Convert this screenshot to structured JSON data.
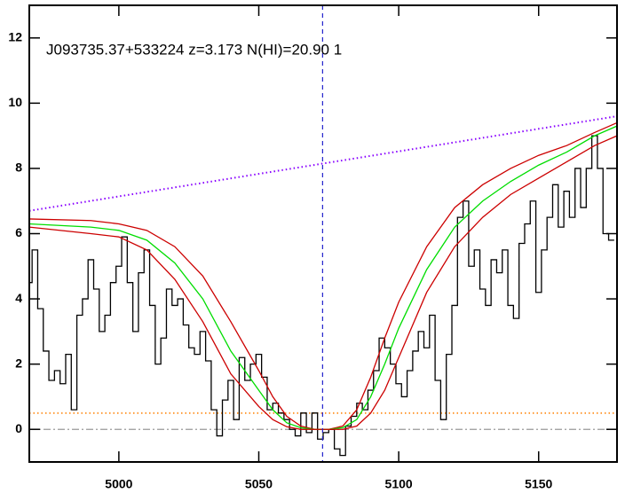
{
  "chart_data": {
    "type": "line",
    "title": "J093735.37+533224 z=3.173 N(HI)=20.90 1",
    "xlim": [
      4968,
      5178
    ],
    "ylim": [
      -1,
      13
    ],
    "xticks": [
      5000,
      5050,
      5100,
      5150
    ],
    "yticks": [
      0,
      2,
      4,
      6,
      8,
      10,
      12
    ],
    "vline": {
      "x": 5072.8,
      "color": "#2222cc"
    },
    "series": [
      {
        "color": "#8800ff",
        "style": "dotted",
        "x": [
          4968,
          5178
        ],
        "values": [
          6.7,
          9.6
        ]
      },
      {
        "color": "#ff9933",
        "style": "dotted",
        "x": [
          4968,
          5178
        ],
        "values": [
          0.5,
          0.5
        ]
      },
      {
        "color": "#999999",
        "style": "dashdot",
        "x": [
          4968,
          5178
        ],
        "values": [
          0,
          0
        ]
      },
      {
        "color": "#000000",
        "style": "steps",
        "x": [
          4968,
          4970,
          4972,
          4974,
          4976,
          4978,
          4980,
          4982,
          4984,
          4986,
          4988,
          4990,
          4992,
          4994,
          4996,
          4998,
          5000,
          5002,
          5004,
          5006,
          5008,
          5010,
          5012,
          5014,
          5016,
          5018,
          5020,
          5022,
          5024,
          5026,
          5028,
          5030,
          5032,
          5034,
          5036,
          5038,
          5040,
          5042,
          5044,
          5046,
          5048,
          5050,
          5052,
          5054,
          5056,
          5058,
          5060,
          5062,
          5064,
          5066,
          5068,
          5070,
          5072,
          5074,
          5076,
          5078,
          5080,
          5082,
          5084,
          5086,
          5088,
          5090,
          5092,
          5094,
          5096,
          5098,
          5100,
          5102,
          5104,
          5106,
          5108,
          5110,
          5112,
          5114,
          5116,
          5118,
          5120,
          5122,
          5124,
          5126,
          5128,
          5130,
          5132,
          5134,
          5136,
          5138,
          5140,
          5142,
          5144,
          5146,
          5148,
          5150,
          5152,
          5154,
          5156,
          5158,
          5160,
          5162,
          5164,
          5166,
          5168,
          5170,
          5172,
          5174,
          5176
        ],
        "values": [
          4.5,
          5.5,
          3.7,
          2.4,
          1.5,
          1.8,
          1.4,
          2.3,
          0.6,
          3.5,
          4.0,
          5.2,
          4.3,
          3.0,
          3.5,
          4.5,
          5.0,
          5.9,
          4.5,
          3.0,
          4.8,
          5.5,
          3.8,
          2.0,
          2.8,
          4.3,
          3.8,
          4.0,
          3.2,
          2.5,
          2.3,
          3.0,
          2.1,
          0.6,
          -0.2,
          0.9,
          1.5,
          0.3,
          2.2,
          1.5,
          2.0,
          2.3,
          1.6,
          0.6,
          0.8,
          0.5,
          0.3,
          0.0,
          -0.2,
          0.5,
          -0.1,
          0.5,
          -0.3,
          -0.1,
          0.0,
          -0.6,
          -0.8,
          0.1,
          0.4,
          0.8,
          0.6,
          1.2,
          1.8,
          2.8,
          2.5,
          2.0,
          1.4,
          1.0,
          1.8,
          2.4,
          3.0,
          2.5,
          3.5,
          1.5,
          0.3,
          2.3,
          3.8,
          6.5,
          7.0,
          5.0,
          5.5,
          4.3,
          3.8,
          5.2,
          4.8,
          5.5,
          3.8,
          3.4,
          5.7,
          6.3,
          7.0,
          4.2,
          5.5,
          6.5,
          7.5,
          6.2,
          7.3,
          6.5,
          8.0,
          6.8,
          8.0,
          9.0,
          8.0,
          6.0,
          5.8
        ]
      },
      {
        "color": "#cc0000",
        "style": "solid",
        "x": [
          4968,
          4990,
          5000,
          5010,
          5020,
          5030,
          5040,
          5050,
          5055,
          5060,
          5065,
          5070,
          5075,
          5080,
          5085,
          5090,
          5095,
          5100,
          5110,
          5120,
          5130,
          5140,
          5150,
          5160,
          5170,
          5178
        ],
        "values": [
          6.45,
          6.4,
          6.3,
          6.1,
          5.6,
          4.7,
          3.3,
          1.8,
          1.0,
          0.4,
          0.1,
          0,
          0,
          0.1,
          0.6,
          1.6,
          2.8,
          3.9,
          5.6,
          6.8,
          7.5,
          8.0,
          8.4,
          8.7,
          9.1,
          9.4
        ]
      },
      {
        "color": "#00dd00",
        "style": "solid",
        "x": [
          4968,
          4990,
          5000,
          5010,
          5020,
          5030,
          5040,
          5050,
          5055,
          5060,
          5065,
          5070,
          5075,
          5080,
          5085,
          5090,
          5095,
          5100,
          5110,
          5120,
          5130,
          5140,
          5150,
          5160,
          5170,
          5178
        ],
        "values": [
          6.3,
          6.2,
          6.1,
          5.8,
          5.1,
          4.0,
          2.4,
          1.2,
          0.6,
          0.2,
          0.05,
          0,
          0,
          0.05,
          0.3,
          1.0,
          2.0,
          3.1,
          4.9,
          6.2,
          7.0,
          7.6,
          8.1,
          8.5,
          9.0,
          9.3
        ]
      },
      {
        "color": "#cc0000",
        "style": "solid",
        "x": [
          4968,
          4990,
          5000,
          5010,
          5020,
          5030,
          5040,
          5050,
          5055,
          5060,
          5065,
          5070,
          5075,
          5080,
          5085,
          5090,
          5095,
          5100,
          5110,
          5120,
          5130,
          5140,
          5150,
          5160,
          5170,
          5178
        ],
        "values": [
          6.2,
          6.0,
          5.9,
          5.5,
          4.6,
          3.3,
          1.7,
          0.7,
          0.3,
          0.08,
          0,
          0,
          0,
          0,
          0.1,
          0.5,
          1.2,
          2.2,
          4.2,
          5.6,
          6.5,
          7.2,
          7.7,
          8.2,
          8.7,
          9.0
        ]
      }
    ]
  }
}
